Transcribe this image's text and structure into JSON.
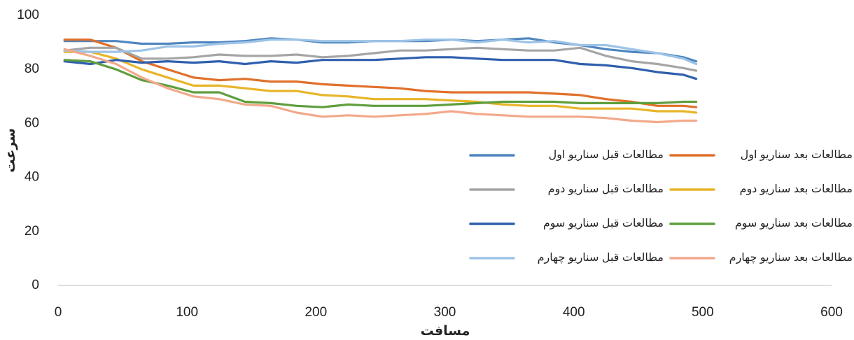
{
  "chart_data": {
    "type": "line",
    "x_label": "مسافت",
    "y_label": "سرعت",
    "x": [
      5,
      25,
      45,
      65,
      85,
      105,
      125,
      145,
      165,
      185,
      205,
      225,
      245,
      265,
      285,
      305,
      325,
      345,
      365,
      385,
      405,
      425,
      445,
      465,
      485,
      495
    ],
    "xlim": [
      0,
      600
    ],
    "xticks": [
      0,
      100,
      200,
      300,
      400,
      500,
      600
    ],
    "ylim": [
      0,
      100
    ],
    "yticks": [
      0,
      20,
      40,
      60,
      80,
      100
    ],
    "grid": false,
    "series": [
      {
        "name": "مطالعات قبل سناریو اول",
        "color": "#4f86c0",
        "values": [
          90.5,
          90.5,
          90.5,
          89.5,
          89.5,
          90,
          90,
          90.5,
          91.5,
          91,
          90,
          90,
          90.5,
          90.5,
          90.5,
          91,
          90.5,
          91,
          91.5,
          90,
          89,
          87.5,
          86.5,
          86,
          84.5,
          83
        ]
      },
      {
        "name": "مطالعات بعد سناریو اول",
        "color": "#e0702a",
        "values": [
          91,
          91,
          88,
          83,
          80,
          77,
          76,
          76.5,
          75.5,
          75.5,
          74.5,
          74,
          73.5,
          73,
          72,
          71.5,
          71.5,
          71.5,
          71.5,
          71,
          70.5,
          69,
          68,
          66.5,
          66.5,
          66
        ]
      },
      {
        "name": "مطالعات قبل سناریو دوم",
        "color": "#a5a5a5",
        "values": [
          87,
          88,
          88,
          84,
          84,
          84.5,
          85.5,
          85,
          85,
          85.5,
          84.5,
          85,
          86,
          87,
          87,
          87.5,
          88,
          87.5,
          87,
          87,
          88,
          85,
          83,
          82,
          80.5,
          79.5
        ]
      },
      {
        "name": "مطالعات بعد سناریو دوم",
        "color": "#e8b52a",
        "values": [
          86.5,
          86.5,
          84,
          80,
          77,
          74,
          74,
          73,
          72,
          72,
          70.5,
          70,
          69,
          69,
          69,
          68.5,
          68,
          67,
          66.5,
          66.5,
          65.5,
          65.5,
          65.5,
          64.5,
          64.5,
          64
        ]
      },
      {
        "name": "مطالعات قبل سناریو سوم",
        "color": "#2f5fae",
        "values": [
          83,
          82,
          83.5,
          82.5,
          83,
          82.5,
          83,
          82,
          83,
          82.5,
          83.5,
          83.5,
          83.5,
          84,
          84.5,
          84.5,
          84,
          83.5,
          83.5,
          83.5,
          82,
          81.5,
          80.5,
          79,
          78,
          76.5
        ]
      },
      {
        "name": "مطالعات بعد سناریو سوم",
        "color": "#5e9e3c",
        "values": [
          83.5,
          83,
          80,
          76,
          74,
          71.5,
          71.5,
          68,
          67.5,
          66.5,
          66,
          67,
          66.5,
          66.5,
          66.5,
          67,
          67.5,
          68,
          68,
          68,
          67.5,
          67.5,
          67.5,
          67.5,
          68,
          68
        ]
      },
      {
        "name": "مطالعات قبل سناریو چهارم",
        "color": "#9dc3e6",
        "values": [
          87,
          86.5,
          86.5,
          87,
          88.5,
          88.5,
          89.5,
          90,
          91,
          91,
          90.5,
          90.5,
          90.5,
          90.5,
          91,
          91,
          90,
          91,
          90,
          90.5,
          89,
          89,
          87.5,
          86,
          84,
          82
        ]
      },
      {
        "name": "مطالعات بعد سناریو چهارم",
        "color": "#f2a98b",
        "values": [
          87.5,
          85,
          82,
          77,
          73,
          70,
          69,
          67,
          66.5,
          64,
          62.5,
          63,
          62.5,
          63,
          63.5,
          64.5,
          63.5,
          63,
          62.5,
          62.5,
          62.5,
          62,
          61,
          60.5,
          61,
          61
        ]
      }
    ]
  }
}
